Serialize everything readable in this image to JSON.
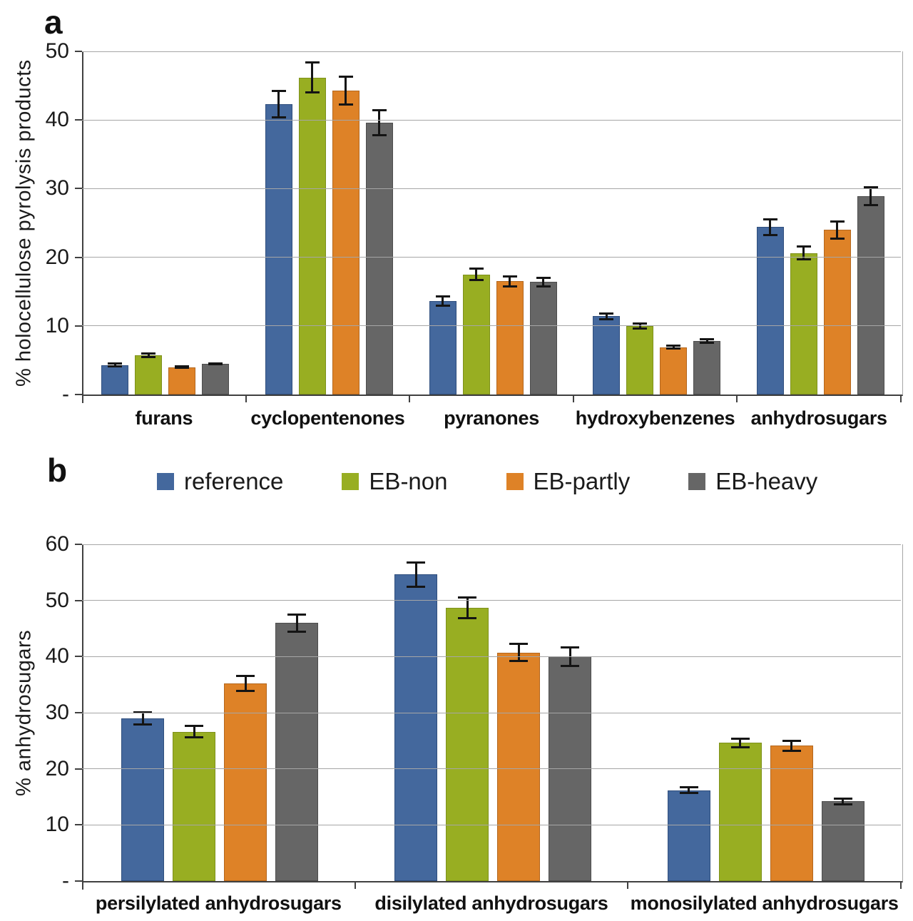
{
  "figure": {
    "background": "#ffffff",
    "description": "Two stacked grouped bar charts with error bars comparing pyrolysis products of electron-beam treated samples"
  },
  "legend": {
    "items": [
      {
        "label": "reference",
        "color": "#44689D",
        "edge": "#2F4E7D"
      },
      {
        "label": "EB-non",
        "color": "#98AE22",
        "edge": "#7E911B"
      },
      {
        "label": "EB-partly",
        "color": "#DE8227",
        "edge": "#B4671E"
      },
      {
        "label": "EB-heavy",
        "color": "#666666",
        "edge": "#4D4D4D"
      }
    ]
  },
  "colors": {
    "gridline": "#a6a6a6",
    "axis": "#404040",
    "error_bar": "#141414"
  },
  "chart_data": [
    {
      "id": "a",
      "panel_letter": "a",
      "type": "bar",
      "title": "",
      "xlabel": "",
      "ylabel": "%  holocellulose pyrolysis products",
      "ylim": [
        0,
        50
      ],
      "ytick_step": 10,
      "ytick_labels": [
        "-",
        "10",
        "20",
        "30",
        "40",
        "50"
      ],
      "grid": true,
      "legend_position": "below-panel-shared",
      "categories": [
        "furans",
        "cyclopentenones",
        "pyranones",
        "hydroxybenzenes",
        "anhydrosugars"
      ],
      "series": [
        {
          "name": "reference",
          "color": "#44689D",
          "edge": "#2F4E7D",
          "values": [
            4.3,
            42.3,
            13.6,
            11.4,
            24.4
          ],
          "errors": [
            0.4,
            2.1,
            0.8,
            0.6,
            1.3
          ]
        },
        {
          "name": "EB-non",
          "color": "#98AE22",
          "edge": "#7E911B",
          "values": [
            5.7,
            46.2,
            17.5,
            10.0,
            20.6
          ],
          "errors": [
            0.4,
            2.3,
            1.0,
            0.5,
            1.1
          ]
        },
        {
          "name": "EB-partly",
          "color": "#DE8227",
          "edge": "#B4671E",
          "values": [
            4.0,
            44.3,
            16.5,
            6.9,
            24.0
          ],
          "errors": [
            0.3,
            2.2,
            0.9,
            0.4,
            1.4
          ]
        },
        {
          "name": "EB-heavy",
          "color": "#666666",
          "edge": "#4D4D4D",
          "values": [
            4.5,
            39.6,
            16.4,
            7.8,
            28.9
          ],
          "errors": [
            0.2,
            2.0,
            0.8,
            0.4,
            1.5
          ]
        }
      ]
    },
    {
      "id": "b",
      "panel_letter": "b",
      "type": "bar",
      "title": "",
      "xlabel": "",
      "ylabel": "%  anhydrosugars",
      "ylim": [
        0,
        60
      ],
      "ytick_step": 10,
      "ytick_labels": [
        "-",
        "10",
        "20",
        "30",
        "40",
        "50",
        "60"
      ],
      "grid": true,
      "legend_position": "above-panel-shared",
      "categories": [
        "persilylated anhydrosugars",
        "disilylated anhydrosugars",
        "monosilylated anhydrosugars"
      ],
      "series": [
        {
          "name": "reference",
          "color": "#44689D",
          "edge": "#2F4E7D",
          "values": [
            29.0,
            54.6,
            16.2
          ],
          "errors": [
            1.3,
            2.3,
            0.7
          ]
        },
        {
          "name": "EB-non",
          "color": "#98AE22",
          "edge": "#7E911B",
          "values": [
            26.6,
            48.7,
            24.6
          ],
          "errors": [
            1.2,
            2.0,
            1.0
          ]
        },
        {
          "name": "EB-partly",
          "color": "#DE8227",
          "edge": "#B4671E",
          "values": [
            35.2,
            40.7,
            24.1
          ],
          "errors": [
            1.5,
            1.7,
            1.1
          ]
        },
        {
          "name": "EB-heavy",
          "color": "#666666",
          "edge": "#4D4D4D",
          "values": [
            46.0,
            40.0,
            14.2
          ],
          "errors": [
            1.7,
            1.8,
            0.7
          ]
        }
      ]
    }
  ]
}
